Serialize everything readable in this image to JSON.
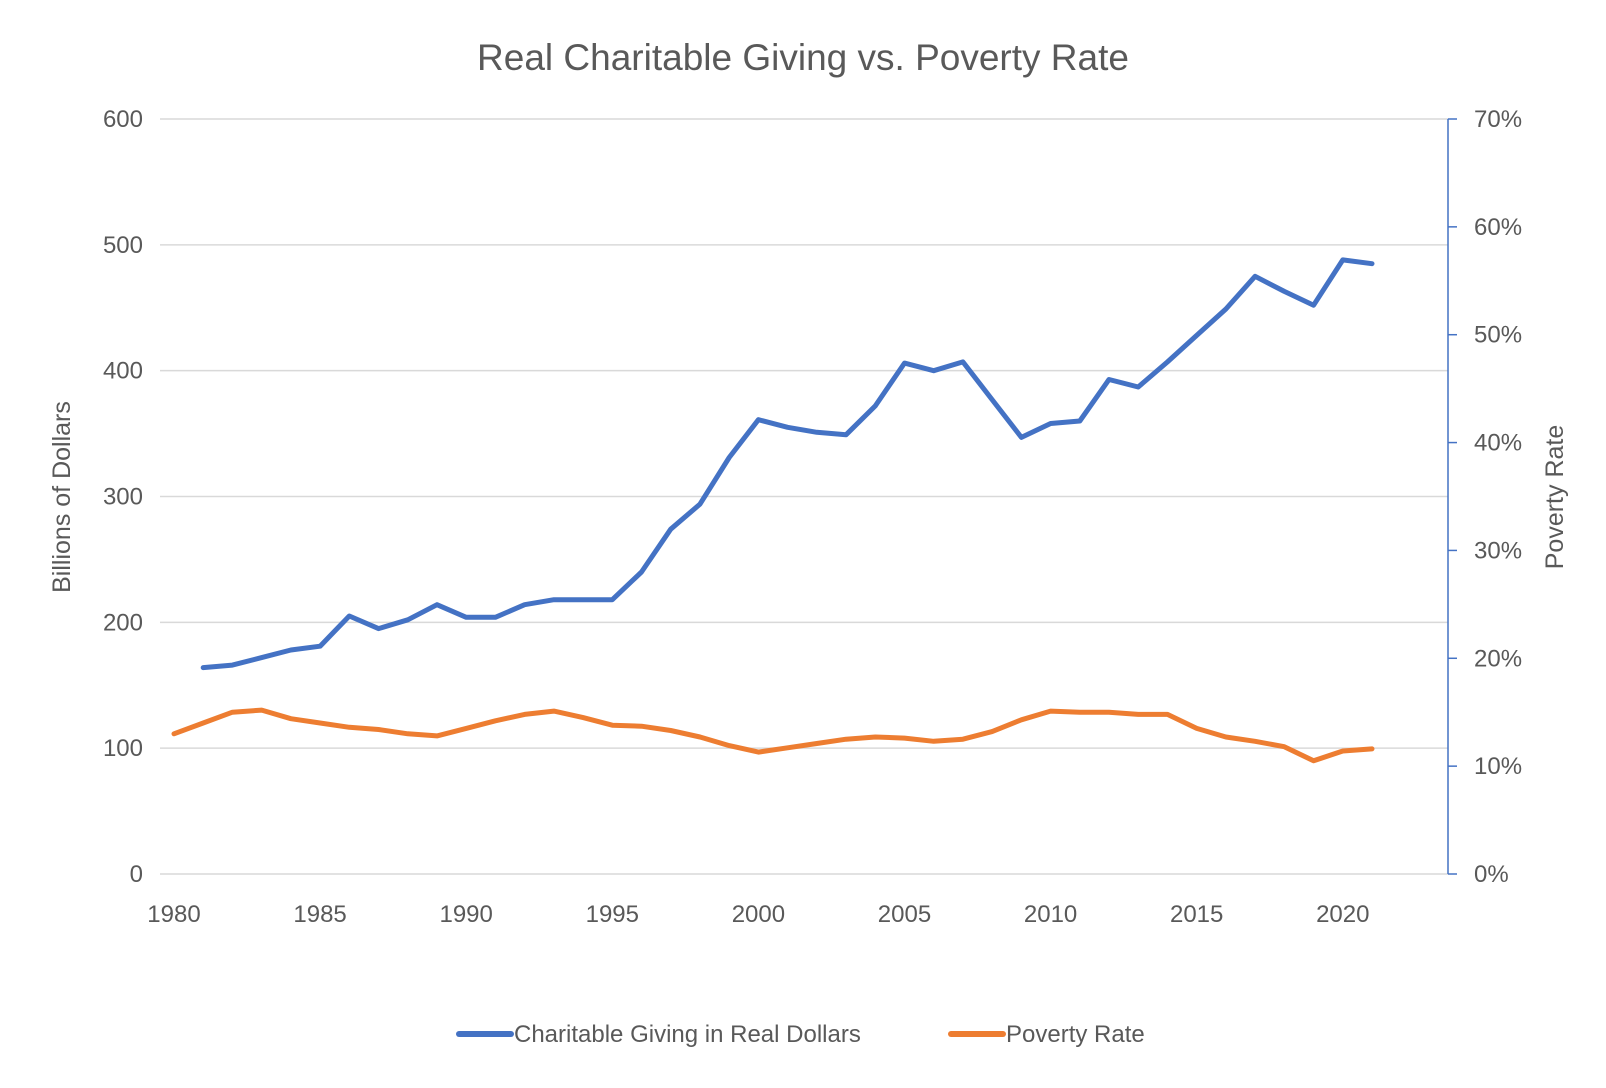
{
  "chart_data": {
    "type": "line",
    "title": "Real Charitable Giving vs. Poverty Rate",
    "xlabel": "",
    "ylabel": "Billions of Dollars",
    "y2label": "Poverty Rate",
    "ylim": [
      0,
      600
    ],
    "y2lim": [
      0,
      0.7
    ],
    "xlim": [
      1980,
      2022
    ],
    "grid": true,
    "legend_position": "bottom",
    "x_ticks": [
      "1980",
      "1985",
      "1990",
      "1995",
      "2000",
      "2005",
      "2010",
      "2015",
      "2020"
    ],
    "y_ticks": [
      "0",
      "100",
      "200",
      "300",
      "400",
      "500",
      "600"
    ],
    "y2_ticks": [
      "0%",
      "10%",
      "20%",
      "30%",
      "40%",
      "50%",
      "60%",
      "70%"
    ],
    "colors": {
      "giving": "#4472c4",
      "poverty": "#ed7d31",
      "right_axis": "#4472c4"
    },
    "series": [
      {
        "name": "Charitable Giving in Real Dollars",
        "axis": "left",
        "x": [
          1981,
          1982,
          1983,
          1984,
          1985,
          1986,
          1987,
          1988,
          1989,
          1990,
          1991,
          1992,
          1993,
          1994,
          1995,
          1996,
          1997,
          1998,
          1999,
          2000,
          2001,
          2002,
          2003,
          2004,
          2005,
          2006,
          2007,
          2008,
          2009,
          2010,
          2011,
          2012,
          2013,
          2014,
          2015,
          2016,
          2017,
          2018,
          2019,
          2020,
          2021
        ],
        "values": [
          164,
          166,
          172,
          178,
          181,
          205,
          195,
          202,
          214,
          204,
          204,
          214,
          218,
          218,
          218,
          240,
          274,
          294,
          331,
          361,
          355,
          351,
          349,
          372,
          406,
          400,
          407,
          377,
          347,
          358,
          360,
          393,
          387,
          407,
          428,
          449,
          475,
          463,
          452,
          488,
          485
        ]
      },
      {
        "name": "Poverty Rate",
        "axis": "right",
        "x": [
          1980,
          1981,
          1982,
          1983,
          1984,
          1985,
          1986,
          1987,
          1988,
          1989,
          1990,
          1991,
          1992,
          1993,
          1994,
          1995,
          1996,
          1997,
          1998,
          1999,
          2000,
          2001,
          2002,
          2003,
          2004,
          2005,
          2006,
          2007,
          2008,
          2009,
          2010,
          2011,
          2012,
          2013,
          2014,
          2015,
          2016,
          2017,
          2018,
          2019,
          2020,
          2021
        ],
        "values": [
          0.13,
          0.14,
          0.15,
          0.152,
          0.144,
          0.14,
          0.136,
          0.134,
          0.13,
          0.128,
          0.135,
          0.142,
          0.148,
          0.151,
          0.145,
          0.138,
          0.137,
          0.133,
          0.127,
          0.119,
          0.113,
          0.117,
          0.121,
          0.125,
          0.127,
          0.126,
          0.123,
          0.125,
          0.132,
          0.143,
          0.151,
          0.15,
          0.15,
          0.148,
          0.148,
          0.135,
          0.127,
          0.123,
          0.118,
          0.105,
          0.114,
          0.116
        ]
      }
    ]
  }
}
